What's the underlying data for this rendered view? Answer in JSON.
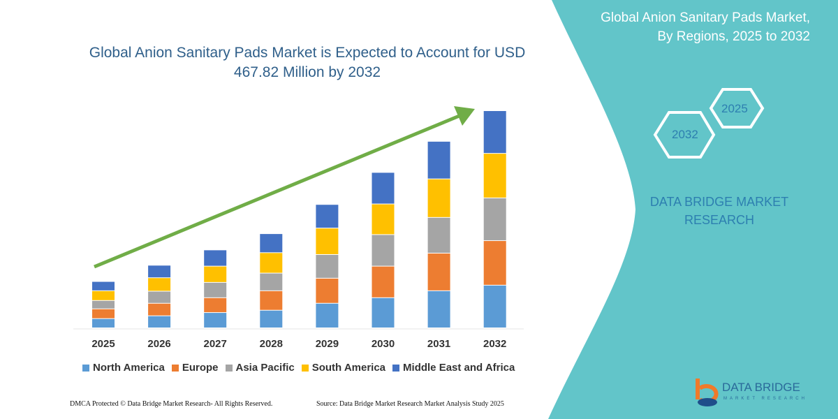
{
  "chart_data": {
    "type": "bar",
    "stacked": true,
    "title": "Global Anion Sanitary Pads Market is Expected to Account for USD 467.82 Million by 2032",
    "xlabel": "",
    "ylabel": "",
    "grid": false,
    "legend_position": "bottom",
    "categories": [
      "2025",
      "2026",
      "2027",
      "2028",
      "2029",
      "2030",
      "2031",
      "2032"
    ],
    "series": [
      {
        "name": "North America",
        "color": "#5b9bd5",
        "values": [
          20,
          26,
          33,
          38,
          53,
          65,
          80,
          92
        ]
      },
      {
        "name": "Europe",
        "color": "#ed7d31",
        "values": [
          21,
          27,
          32,
          42,
          54,
          68,
          81,
          96
        ]
      },
      {
        "name": "Asia Pacific",
        "color": "#a5a5a5",
        "values": [
          18,
          26,
          33,
          38,
          51,
          68,
          77,
          92
        ]
      },
      {
        "name": "South America",
        "color": "#ffc000",
        "values": [
          21,
          29,
          35,
          44,
          57,
          66,
          83,
          96
        ]
      },
      {
        "name": "Middle East and Africa",
        "color": "#4472c4",
        "values": [
          20,
          27,
          35,
          41,
          51,
          68,
          81,
          92
        ]
      }
    ],
    "trend_arrow_color": "#70ad47"
  },
  "side_panel": {
    "title_line1": "Global Anion Sanitary Pads Market,",
    "title_line2": "By Regions, 2025 to 2032",
    "hex_start": "2025",
    "hex_end": "2032",
    "brand_line1": "DATA BRIDGE MARKET",
    "brand_line2": "RESEARCH",
    "logo_text": "DATA BRIDGE",
    "logo_subtext": "MARKET RESEARCH",
    "color": "#62c5c9"
  },
  "footer": {
    "copyright": "DMCA Protected © Data Bridge Market Research-  All Rights Reserved.",
    "source": "Source: Data Bridge Market Research  Market Analysis Study 2025"
  }
}
